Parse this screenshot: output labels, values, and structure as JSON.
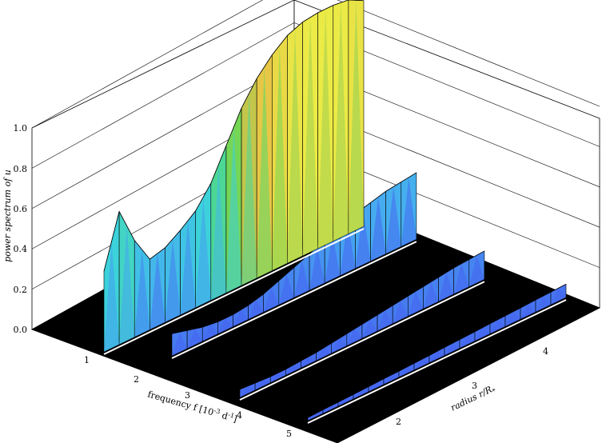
{
  "chart_data": {
    "type": "area",
    "z_label": "power spectrum of u",
    "z_ticks": [
      "0.0",
      "0.2",
      "0.4",
      "0.6",
      "0.8",
      "1.0"
    ],
    "zlim": [
      0.0,
      1.0
    ],
    "x_label_main": "frequency f [10",
    "x_label_exp1": "-3",
    "x_label_mid": " d",
    "x_label_exp2": "-1",
    "x_label_end": "]",
    "x_ticks": [
      "1",
      "2",
      "3",
      "4",
      "5"
    ],
    "y_label_main": "radius r/R",
    "y_label_sub": "*",
    "y_ticks": [
      "2",
      "3",
      "4"
    ],
    "grid": true,
    "colormap": "jet",
    "floor_color": "#000000",
    "series": [
      {
        "x": [
          0.9,
          1.1,
          1.3,
          1.5,
          1.7,
          1.9,
          2.1,
          2.3,
          2.5,
          2.7,
          2.9,
          3.1,
          3.3,
          3.5,
          3.7,
          3.9,
          4.1,
          4.3
        ],
        "values": [
          0.4,
          0.66,
          0.48,
          0.35,
          0.37,
          0.42,
          0.48,
          0.58,
          0.73,
          0.88,
          0.99,
          1.07,
          1.13,
          1.16,
          1.17,
          1.17,
          1.16,
          1.12
        ]
      },
      {
        "x": [
          0.9,
          1.1,
          1.3,
          1.5,
          1.7,
          1.9,
          2.1,
          2.3,
          2.5,
          2.7,
          2.9,
          3.1,
          3.3,
          3.5,
          3.7,
          3.9,
          4.1
        ],
        "values": [
          0.11,
          0.09,
          0.07,
          0.06,
          0.06,
          0.07,
          0.09,
          0.12,
          0.15,
          0.18,
          0.21,
          0.24,
          0.27,
          0.29,
          0.31,
          0.32,
          0.33
        ]
      },
      {
        "x": [
          0.9,
          1.1,
          1.3,
          1.5,
          1.7,
          1.9,
          2.1,
          2.3,
          2.5,
          2.7,
          2.9,
          3.1,
          3.3,
          3.5,
          3.7,
          3.9,
          4.1
        ],
        "values": [
          0.04,
          0.035,
          0.03,
          0.03,
          0.035,
          0.04,
          0.05,
          0.06,
          0.07,
          0.08,
          0.09,
          0.1,
          0.11,
          0.12,
          0.13,
          0.135,
          0.14
        ]
      },
      {
        "x": [
          0.9,
          1.1,
          1.3,
          1.5,
          1.7,
          1.9,
          2.1,
          2.3,
          2.5,
          2.7,
          2.9,
          3.1,
          3.3,
          3.5,
          3.7,
          3.9,
          4.1,
          4.3
        ],
        "values": [
          0.015,
          0.018,
          0.02,
          0.022,
          0.025,
          0.028,
          0.03,
          0.033,
          0.036,
          0.04,
          0.043,
          0.046,
          0.05,
          0.053,
          0.056,
          0.06,
          0.063,
          0.066
        ]
      }
    ]
  }
}
